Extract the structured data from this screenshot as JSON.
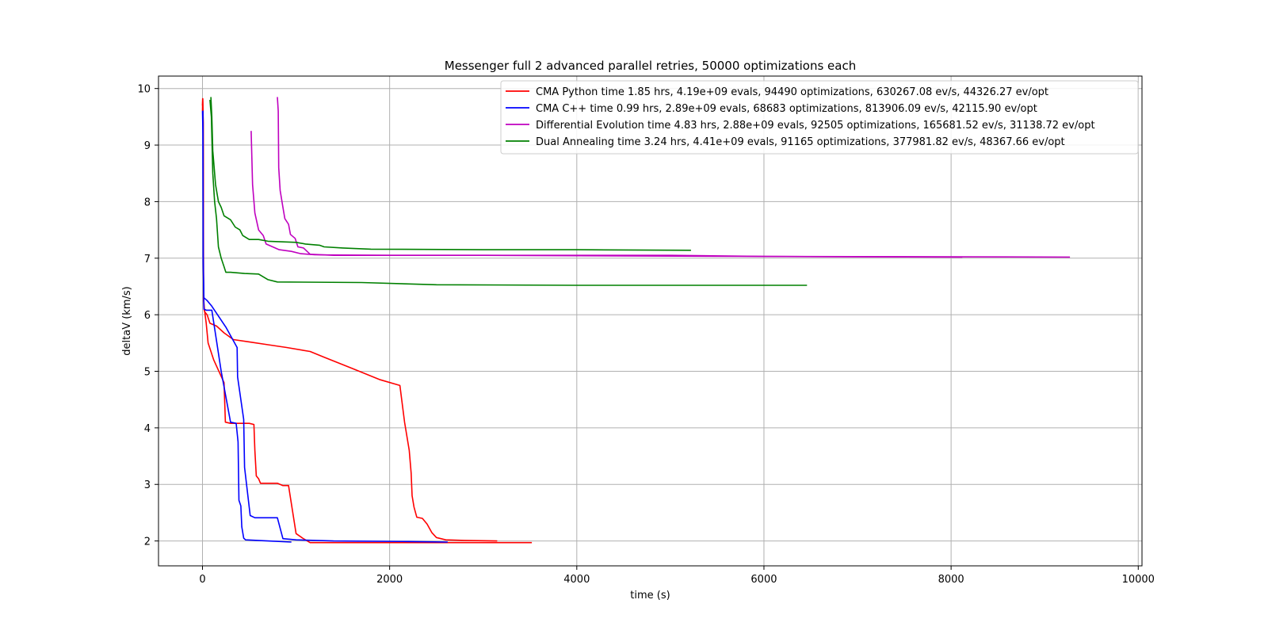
{
  "chart_data": {
    "type": "line",
    "title": "Messenger full 2 advanced parallel retries, 50000 optimizations each",
    "xlabel": "time (s)",
    "ylabel": "deltaV (km/s)",
    "xlim": [
      -470,
      10040
    ],
    "ylim": [
      1.56,
      10.22
    ],
    "xticks": [
      0,
      2000,
      4000,
      6000,
      8000,
      10000
    ],
    "xtick_labels": [
      "0",
      "2000",
      "4000",
      "6000",
      "8000",
      "10000"
    ],
    "yticks": [
      2,
      3,
      4,
      5,
      6,
      7,
      8,
      9,
      10
    ],
    "ytick_labels": [
      "2",
      "3",
      "4",
      "5",
      "6",
      "7",
      "8",
      "9",
      "10"
    ],
    "grid": true,
    "legend_position": "upper right",
    "series": [
      {
        "name": "CMA Python time 1.85 hrs, 4.19e+09 evals, 94490 optimizations, 630267.08 ev/s, 44326.27 ev/opt",
        "color": "#ff0000",
        "lines": [
          [
            [
              0,
              9.7
            ],
            [
              3,
              9.82
            ],
            [
              8,
              9.4
            ],
            [
              10,
              7.0
            ],
            [
              12,
              6.3
            ],
            [
              15,
              6.1
            ],
            [
              25,
              6.05
            ],
            [
              50,
              6.0
            ],
            [
              80,
              5.85
            ],
            [
              150,
              5.8
            ],
            [
              230,
              5.68
            ],
            [
              330,
              5.56
            ],
            [
              500,
              5.52
            ],
            [
              700,
              5.47
            ],
            [
              900,
              5.42
            ],
            [
              1150,
              5.35
            ],
            [
              1300,
              5.25
            ],
            [
              1600,
              5.05
            ],
            [
              1900,
              4.85
            ],
            [
              2110,
              4.75
            ],
            [
              2160,
              4.1
            ],
            [
              2210,
              3.6
            ],
            [
              2230,
              3.2
            ],
            [
              2240,
              2.8
            ],
            [
              2260,
              2.6
            ],
            [
              2290,
              2.42
            ],
            [
              2350,
              2.4
            ],
            [
              2400,
              2.3
            ],
            [
              2450,
              2.15
            ],
            [
              2500,
              2.06
            ],
            [
              2600,
              2.02
            ],
            [
              2800,
              2.01
            ],
            [
              3150,
              2.0
            ]
          ],
          [
            [
              0,
              9.6
            ],
            [
              2,
              9.82
            ],
            [
              8,
              9.4
            ],
            [
              12,
              6.3
            ],
            [
              20,
              6.1
            ],
            [
              40,
              5.85
            ],
            [
              60,
              5.5
            ],
            [
              120,
              5.2
            ],
            [
              230,
              4.8
            ],
            [
              245,
              4.1
            ],
            [
              300,
              4.08
            ],
            [
              400,
              4.08
            ],
            [
              500,
              4.08
            ],
            [
              550,
              4.06
            ],
            [
              560,
              3.6
            ],
            [
              575,
              3.15
            ],
            [
              600,
              3.1
            ],
            [
              620,
              3.02
            ],
            [
              700,
              3.02
            ],
            [
              800,
              3.02
            ],
            [
              860,
              2.98
            ],
            [
              920,
              2.98
            ],
            [
              960,
              2.55
            ],
            [
              1000,
              2.13
            ],
            [
              1070,
              2.05
            ],
            [
              1150,
              1.97
            ],
            [
              1500,
              1.97
            ],
            [
              2500,
              1.97
            ],
            [
              3520,
              1.97
            ]
          ]
        ]
      },
      {
        "name": "CMA C++ time 0.99 hrs, 2.89e+09 evals, 68683 optimizations, 813906.09 ev/s, 42115.90 ev/opt",
        "color": "#0000ff",
        "lines": [
          [
            [
              0,
              9.6
            ],
            [
              5,
              9.6
            ],
            [
              8,
              7.0
            ],
            [
              15,
              6.1
            ],
            [
              40,
              6.08
            ],
            [
              100,
              6.08
            ],
            [
              200,
              5.0
            ],
            [
              300,
              4.1
            ],
            [
              360,
              4.08
            ],
            [
              380,
              3.75
            ],
            [
              390,
              2.72
            ],
            [
              410,
              2.62
            ],
            [
              420,
              2.25
            ],
            [
              440,
              2.05
            ],
            [
              460,
              2.02
            ],
            [
              700,
              2.0
            ],
            [
              950,
              1.98
            ]
          ],
          [
            [
              0,
              9.6
            ],
            [
              5,
              9.2
            ],
            [
              8,
              7.0
            ],
            [
              15,
              6.3
            ],
            [
              50,
              6.25
            ],
            [
              100,
              6.15
            ],
            [
              250,
              5.78
            ],
            [
              370,
              5.42
            ],
            [
              375,
              4.9
            ],
            [
              440,
              4.15
            ],
            [
              450,
              3.3
            ],
            [
              510,
              2.45
            ],
            [
              560,
              2.41
            ],
            [
              650,
              2.41
            ],
            [
              800,
              2.41
            ],
            [
              860,
              2.04
            ],
            [
              1000,
              2.02
            ],
            [
              1400,
              2.0
            ],
            [
              2200,
              1.99
            ],
            [
              2620,
              1.98
            ]
          ]
        ]
      },
      {
        "name": "Differential Evolution time 4.83 hrs, 2.88e+09 evals, 92505 optimizations, 165681.52 ev/s, 31138.72 ev/opt",
        "color": "#bf00bf",
        "lines": [
          [
            [
              520,
              9.25
            ],
            [
              535,
              8.3
            ],
            [
              560,
              7.8
            ],
            [
              600,
              7.5
            ],
            [
              650,
              7.4
            ],
            [
              680,
              7.25
            ],
            [
              750,
              7.2
            ],
            [
              820,
              7.15
            ],
            [
              950,
              7.12
            ],
            [
              1050,
              7.08
            ],
            [
              1200,
              7.06
            ],
            [
              2000,
              7.05
            ],
            [
              5000,
              7.05
            ],
            [
              6000,
              7.03
            ],
            [
              9270,
              7.02
            ]
          ],
          [
            [
              800,
              9.85
            ],
            [
              810,
              9.6
            ],
            [
              815,
              8.6
            ],
            [
              830,
              8.2
            ],
            [
              860,
              7.9
            ],
            [
              880,
              7.7
            ],
            [
              920,
              7.6
            ],
            [
              940,
              7.42
            ],
            [
              990,
              7.35
            ],
            [
              1020,
              7.2
            ],
            [
              1080,
              7.18
            ],
            [
              1150,
              7.07
            ],
            [
              1400,
              7.05
            ],
            [
              3000,
              7.05
            ],
            [
              6000,
              7.03
            ],
            [
              8120,
              7.02
            ]
          ]
        ]
      },
      {
        "name": "Dual Annealing time 3.24 hrs, 4.41e+09 evals, 91165 optimizations, 377981.82 ev/s, 48367.66 ev/opt",
        "color": "#008000",
        "lines": [
          [
            [
              90,
              9.85
            ],
            [
              100,
              9.5
            ],
            [
              110,
              8.9
            ],
            [
              140,
              8.3
            ],
            [
              170,
              8.0
            ],
            [
              200,
              7.9
            ],
            [
              230,
              7.75
            ],
            [
              300,
              7.68
            ],
            [
              350,
              7.55
            ],
            [
              400,
              7.5
            ],
            [
              430,
              7.4
            ],
            [
              470,
              7.36
            ],
            [
              500,
              7.33
            ],
            [
              600,
              7.33
            ],
            [
              700,
              7.3
            ],
            [
              1000,
              7.28
            ],
            [
              1100,
              7.25
            ],
            [
              1250,
              7.23
            ],
            [
              1300,
              7.2
            ],
            [
              1500,
              7.18
            ],
            [
              1800,
              7.16
            ],
            [
              3000,
              7.15
            ],
            [
              4000,
              7.15
            ],
            [
              5220,
              7.14
            ]
          ],
          [
            [
              80,
              9.8
            ],
            [
              95,
              9.5
            ],
            [
              110,
              8.5
            ],
            [
              130,
              8.0
            ],
            [
              150,
              7.7
            ],
            [
              170,
              7.2
            ],
            [
              200,
              7.0
            ],
            [
              230,
              6.85
            ],
            [
              250,
              6.75
            ],
            [
              300,
              6.75
            ],
            [
              450,
              6.73
            ],
            [
              600,
              6.72
            ],
            [
              700,
              6.62
            ],
            [
              800,
              6.58
            ],
            [
              1700,
              6.57
            ],
            [
              2500,
              6.53
            ],
            [
              4000,
              6.52
            ],
            [
              6460,
              6.52
            ]
          ]
        ]
      }
    ]
  }
}
